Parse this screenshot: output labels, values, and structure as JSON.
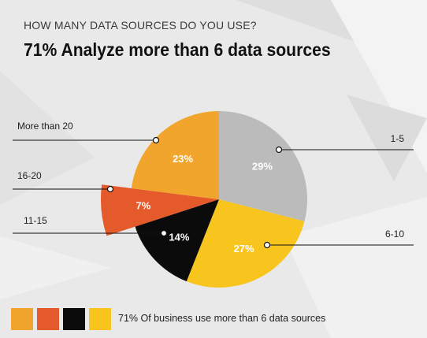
{
  "header": {
    "subtitle": "HOW MANY DATA SOURCES DO YOU USE?",
    "title": "71% Analyze more than 6 data sources"
  },
  "chart_data": {
    "type": "pie",
    "title": "71% Analyze more than 6 data sources",
    "subtitle": "HOW MANY DATA SOURCES DO YOU USE?",
    "slices": [
      {
        "label": "1-5",
        "value": 29,
        "display": "29%",
        "color": "#bbbbbb",
        "text_color": "#ffffff"
      },
      {
        "label": "6-10",
        "value": 27,
        "display": "27%",
        "color": "#f7c51d",
        "text_color": "#ffffff"
      },
      {
        "label": "11-15",
        "value": 14,
        "display": "14%",
        "color": "#0b0b0b",
        "text_color": "#ffffff"
      },
      {
        "label": "16-20",
        "value": 7,
        "display": "7%",
        "color": "#e55a2b",
        "text_color": "#ffffff"
      },
      {
        "label": "More than 20",
        "value": 23,
        "display": "23%",
        "color": "#f2a52c",
        "text_color": "#ffffff"
      }
    ]
  },
  "legend": {
    "colors": [
      "#f2a52c",
      "#e55a2b",
      "#0b0b0b",
      "#f7c51d"
    ],
    "text": "71% Of business use more  than 6 data sources"
  }
}
